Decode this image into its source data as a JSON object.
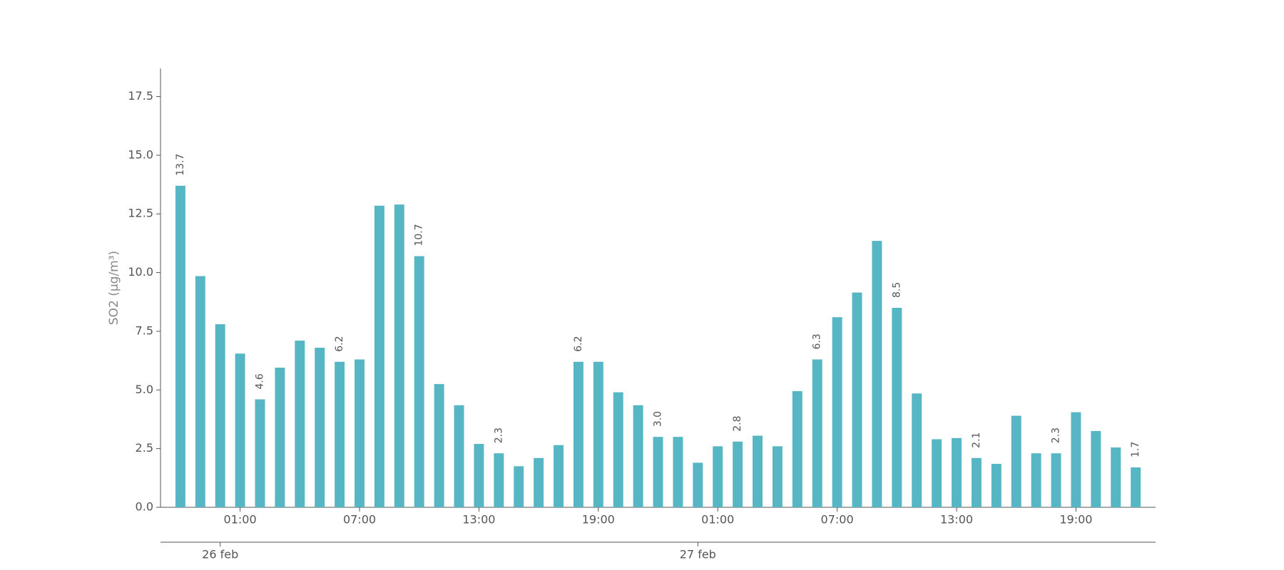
{
  "chart_data": {
    "type": "bar",
    "ylabel": "SO2 (μg/m³)",
    "color": "#56b6c4",
    "categories": [
      null,
      null,
      null,
      "01:00",
      null,
      null,
      null,
      null,
      null,
      "07:00",
      null,
      null,
      null,
      null,
      null,
      "13:00",
      null,
      null,
      null,
      null,
      null,
      "19:00",
      null,
      null,
      null,
      null,
      null,
      "01:00",
      null,
      null,
      null,
      null,
      null,
      "07:00",
      null,
      null,
      null,
      null,
      null,
      "13:00",
      null,
      null,
      null,
      null,
      null,
      "19:00",
      null,
      null,
      null
    ],
    "date_categories": [
      null,
      null,
      "26 feb",
      null,
      null,
      null,
      null,
      null,
      null,
      null,
      null,
      null,
      null,
      null,
      null,
      null,
      null,
      null,
      null,
      null,
      null,
      null,
      null,
      null,
      null,
      null,
      "27 feb",
      null,
      null,
      null,
      null,
      null,
      null,
      null,
      null,
      null,
      null,
      null,
      null,
      null,
      null,
      null,
      null,
      null,
      null,
      null,
      null,
      null,
      null
    ],
    "values": [
      13.7,
      9.85,
      7.8,
      6.55,
      4.6,
      5.95,
      7.1,
      6.8,
      6.2,
      6.3,
      12.85,
      12.9,
      10.7,
      5.25,
      4.35,
      2.7,
      2.3,
      1.75,
      2.1,
      2.65,
      6.2,
      6.2,
      4.9,
      4.35,
      3.0,
      3.0,
      1.9,
      2.6,
      2.8,
      3.05,
      2.6,
      4.95,
      6.3,
      8.1,
      9.15,
      11.35,
      8.5,
      4.85,
      2.9,
      2.95,
      2.1,
      1.85,
      3.9,
      2.3,
      2.3,
      4.05,
      3.25,
      2.55,
      1.7
    ],
    "value_labels": [
      "13.7",
      null,
      null,
      null,
      "4.6",
      null,
      null,
      null,
      "6.2",
      null,
      null,
      null,
      "10.7",
      null,
      null,
      null,
      "2.3",
      null,
      null,
      null,
      "6.2",
      null,
      null,
      null,
      "3.0",
      null,
      null,
      null,
      "2.8",
      null,
      null,
      null,
      "6.3",
      null,
      null,
      null,
      "8.5",
      null,
      null,
      null,
      "2.1",
      null,
      null,
      null,
      "2.3",
      null,
      null,
      null,
      "1.7"
    ],
    "ylim": [
      0,
      18.7
    ],
    "yticks": [
      {
        "value": 0,
        "label": "0.0"
      },
      2.5,
      {
        "value": 5,
        "label": "5.0"
      },
      7.5,
      {
        "value": 10,
        "label": "10.0"
      },
      12.5,
      {
        "value": 15,
        "label": "15.0"
      },
      17.5
    ]
  }
}
